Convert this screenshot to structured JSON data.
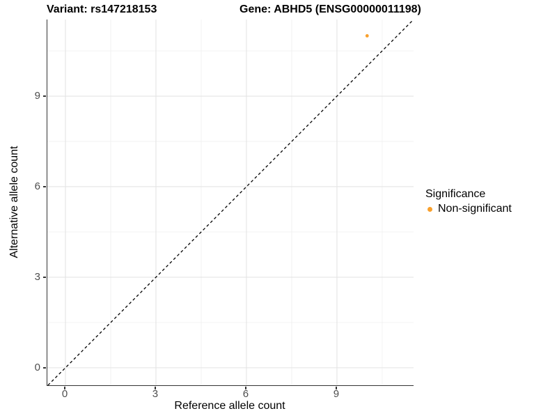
{
  "figure": {
    "title_left": "Variant: rs147218153",
    "title_right": "Gene: ABHD5 (ENSG00000011198)"
  },
  "chart_data": {
    "type": "scatter",
    "title": "Variant: rs147218153  /  Gene: ABHD5 (ENSG00000011198)",
    "xlabel": "Reference allele count",
    "ylabel": "Alternative allele count",
    "xlim": [
      -0.6,
      11.54
    ],
    "ylim": [
      -0.58,
      11.54
    ],
    "x_ticks": [
      0,
      3,
      6,
      9
    ],
    "y_ticks": [
      0,
      3,
      6,
      9
    ],
    "x_minor_ticks": [
      1.5,
      4.5,
      7.5,
      10.5
    ],
    "y_minor_ticks": [
      1.5,
      4.5,
      7.5,
      10.5
    ],
    "grid": "major+minor",
    "reference_line": {
      "slope": 1,
      "intercept": 0,
      "style": "dashed",
      "color": "#000000"
    },
    "series": [
      {
        "name": "Non-significant",
        "color": "#F9A02C",
        "points": [
          {
            "x": 10,
            "y": 11
          }
        ]
      }
    ],
    "legend": {
      "title": "Significance",
      "position": "right",
      "items": [
        {
          "label": "Non-significant",
          "color": "#F9A02C"
        }
      ]
    }
  },
  "colors": {
    "background": "#FFFFFF",
    "point_orange": "#F9A02C",
    "grid_major": "#E4E4E4",
    "grid_minor": "#F1F1F1",
    "axis_line": "#333333",
    "tick_label": "#4D4D4D",
    "text": "#000000"
  }
}
